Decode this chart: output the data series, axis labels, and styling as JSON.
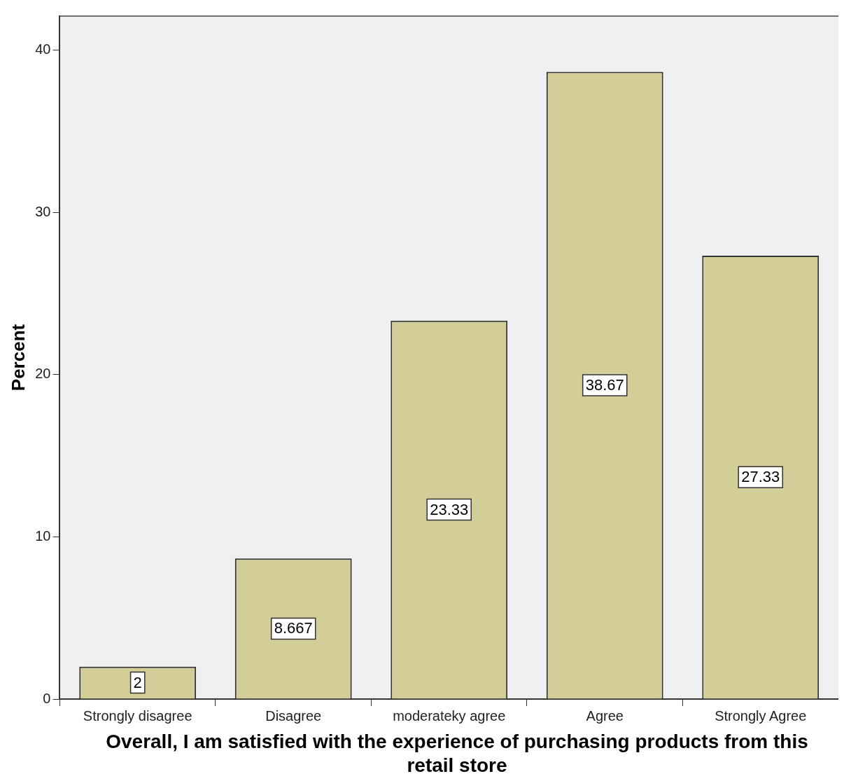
{
  "chart_data": {
    "type": "bar",
    "xlabel": "Overall, I am satisfied with the experience of purchasing products from this retail store",
    "ylabel": "Percent",
    "categories": [
      "Strongly disagree",
      "Disagree",
      "moderateky agree",
      "Agree",
      "Strongly Agree"
    ],
    "values": [
      2,
      8.667,
      23.33,
      38.67,
      27.33
    ],
    "color": "#d3cd98",
    "ylim": [
      0,
      42.1
    ],
    "yticks": [
      0,
      10,
      20,
      30,
      40
    ],
    "grid": false,
    "legend": false,
    "data_labels": true
  }
}
